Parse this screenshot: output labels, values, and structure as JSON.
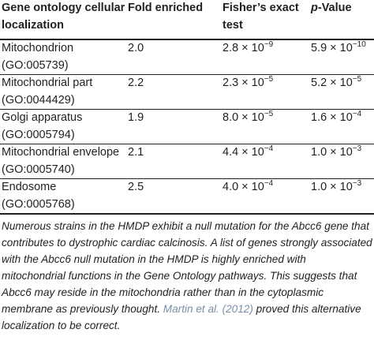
{
  "table": {
    "header": [
      "Gene ontology cellular localization",
      "Fold enriched",
      "Fisher’s exact test",
      [
        "p",
        "-Value"
      ]
    ],
    "rows": [
      {
        "term": "Mitochondrion",
        "go": "(GO:005739)",
        "fold": "2.0",
        "fisher": [
          "2.8 × 10",
          "−9"
        ],
        "p": [
          "5.9 × 10",
          "−10"
        ]
      },
      {
        "term": "Mitochondrial part",
        "go": "(GO:0044429)",
        "fold": "2.2",
        "fisher": [
          "2.3 × 10",
          "−5"
        ],
        "p": [
          "5.2 × 10",
          "−5"
        ]
      },
      {
        "term": "Golgi apparatus",
        "go": "(GO:0005794)",
        "fold": "1.9",
        "fisher": [
          "8.0 × 10",
          "−5"
        ],
        "p": [
          "1.6 × 10",
          "−4"
        ]
      },
      {
        "term": "Mitochondrial envelope",
        "go": "(GO:0005740)",
        "fold": "2.1",
        "fisher": [
          "4.4 × 10",
          "−4"
        ],
        "p": [
          "1.0 × 10",
          "−3"
        ]
      },
      {
        "term": "Endosome",
        "go": "(GO:0005768)",
        "fold": "2.5",
        "fisher": [
          "4.0 × 10",
          "−4"
        ],
        "p": [
          "1.0 × 10",
          "−3"
        ]
      }
    ]
  },
  "caption": {
    "text": "Numerous strains in the HMDP exhibit a null mutation for the Abcc6 gene that contributes to dystrophic cardiac calcinosis. A list of genes strongly associated with the Abcc6 null mutation in the HMDP is highly enriched with mitochondrial functions in the Gene Ontology pathways. This suggests that Abcc6 may reside in the mitochondria rather than in the cytoplasmic membrane as previously thought. ",
    "link": "Martin et al. (2012)",
    "after": " proved this alternative localization to be correct."
  }
}
